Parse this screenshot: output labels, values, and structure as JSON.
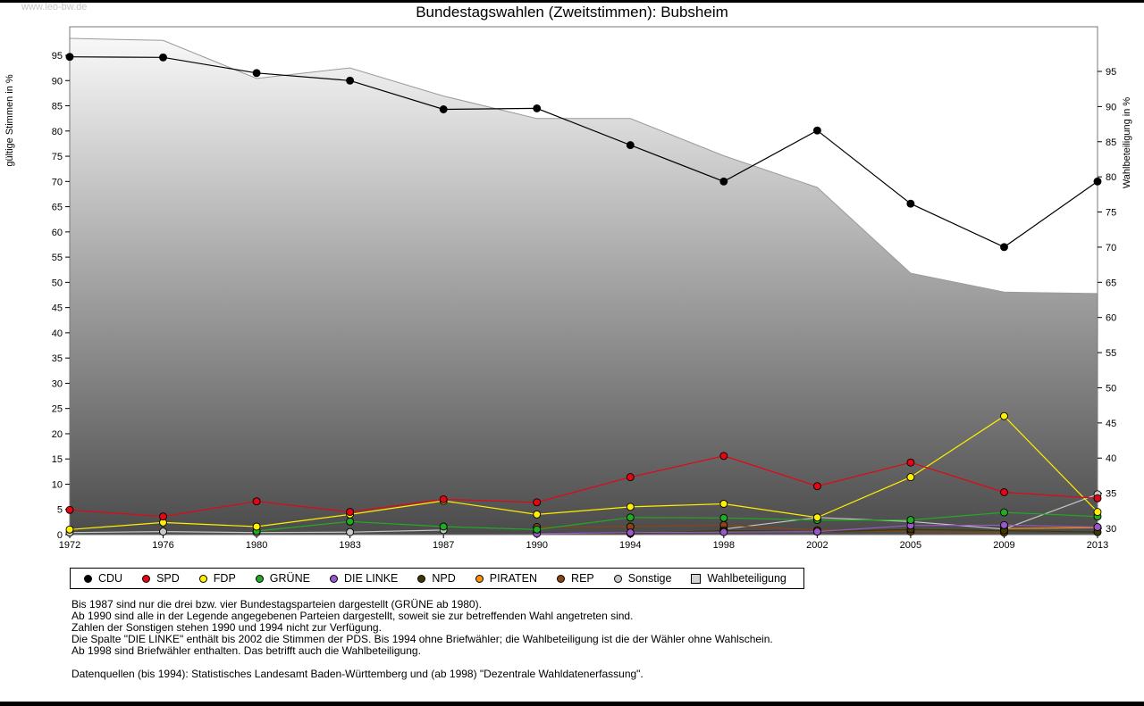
{
  "watermark": "www.leo-bw.de",
  "title": "Bundestagswahlen (Zweitstimmen): Bubsheim",
  "chart_data": {
    "type": "line",
    "title": "Bundestagswahlen (Zweitstimmen): Bubsheim",
    "x_categories": [
      "1972",
      "1976",
      "1980",
      "1983",
      "1987",
      "1990",
      "1994",
      "1998",
      "2002",
      "2005",
      "2009",
      "2013"
    ],
    "left_axis": {
      "label": "gültige Stimmen in %",
      "min": 0,
      "max": 95,
      "tick_step": 5
    },
    "right_axis": {
      "label": "Wahlbeteiligung in %",
      "min": 30,
      "max": 95,
      "tick_step": 5
    },
    "grid": false,
    "legend_position": "bottom",
    "series": [
      {
        "key": "cdu",
        "name": "CDU",
        "color": "#000000",
        "axis": "left",
        "values": [
          94.7,
          94.6,
          91.5,
          90.0,
          84.3,
          84.5,
          77.2,
          70.0,
          80.1,
          65.6,
          57.0,
          70.0
        ]
      },
      {
        "key": "spd",
        "name": "SPD",
        "color": "#e30613",
        "axis": "left",
        "values": [
          4.9,
          3.6,
          6.6,
          4.5,
          7.0,
          6.4,
          11.4,
          15.6,
          9.6,
          14.3,
          8.4,
          7.2
        ]
      },
      {
        "key": "fdp",
        "name": "FDP",
        "color": "#ffef00",
        "axis": "left",
        "values": [
          1.0,
          2.4,
          1.6,
          4.0,
          6.7,
          4.0,
          5.5,
          6.1,
          3.4,
          11.4,
          23.5,
          4.5
        ]
      },
      {
        "key": "gruene",
        "name": "GRÜNE",
        "color": "#22aa22",
        "axis": "left",
        "values": [
          null,
          null,
          0.7,
          2.6,
          1.6,
          1.0,
          3.4,
          3.3,
          2.9,
          2.9,
          4.4,
          3.6
        ]
      },
      {
        "key": "die-linke",
        "name": "DIE LINKE",
        "color": "#9858c8",
        "axis": "left",
        "values": [
          null,
          null,
          null,
          null,
          null,
          0.2,
          0.4,
          0.5,
          0.6,
          1.8,
          1.9,
          1.5
        ]
      },
      {
        "key": "npd",
        "name": "NPD",
        "color": "#3a3a00",
        "axis": "left",
        "values": [
          null,
          null,
          null,
          null,
          null,
          0.3,
          0.2,
          0.8,
          0.6,
          1.0,
          0.8,
          0.5
        ]
      },
      {
        "key": "piraten",
        "name": "PIRATEN",
        "color": "#ff9000",
        "axis": "left",
        "values": [
          null,
          null,
          null,
          null,
          null,
          null,
          null,
          null,
          null,
          null,
          1.2,
          1.4
        ]
      },
      {
        "key": "rep",
        "name": "REP",
        "color": "#8b4513",
        "axis": "left",
        "values": [
          null,
          null,
          null,
          null,
          null,
          1.5,
          1.6,
          1.9,
          0.9,
          0.6,
          0.4,
          null
        ]
      },
      {
        "key": "sonstige",
        "name": "Sonstige",
        "color": "#c8c8c8",
        "axis": "left",
        "values": [
          0.4,
          0.6,
          0.4,
          0.5,
          0.9,
          null,
          null,
          1.1,
          3.4,
          2.6,
          1.1,
          8.0
        ]
      }
    ],
    "turnout": {
      "key": "wahlbeteiligung",
      "name": "Wahlbeteiligung",
      "axis": "right",
      "type": "area",
      "line_color": "#9a9a9a",
      "legend_color": "#d2d2d2",
      "fill_top": "#fcfcfc",
      "fill_bottom": "#4b4b4b",
      "values": [
        99.7,
        99.4,
        94.0,
        95.5,
        91.5,
        88.3,
        88.3,
        83.0,
        78.5,
        66.3,
        63.6,
        63.4
      ]
    }
  },
  "notes": [
    "Bis 1987 sind nur die drei bzw. vier Bundestagsparteien dargestellt (GRÜNE ab 1980).",
    "Ab 1990 sind alle in der Legende angegebenen Parteien dargestellt, soweit sie zur betreffenden Wahl angetreten sind.",
    "Zahlen der Sonstigen stehen 1990 und 1994 nicht zur Verfügung.",
    "Die Spalte \"DIE LINKE\" enthält bis 2002 die Stimmen der PDS. Bis 1994 ohne Briefwähler; die Wahlbeteiligung ist die der Wähler ohne Wahlschein.",
    "Ab 1998 sind Briefwähler enthalten. Das betrifft auch die Wahlbeteiligung."
  ],
  "source_note": "Datenquellen (bis 1994): Statistisches Landesamt Baden-Württemberg und (ab 1998) \"Dezentrale Wahldatenerfassung\"."
}
